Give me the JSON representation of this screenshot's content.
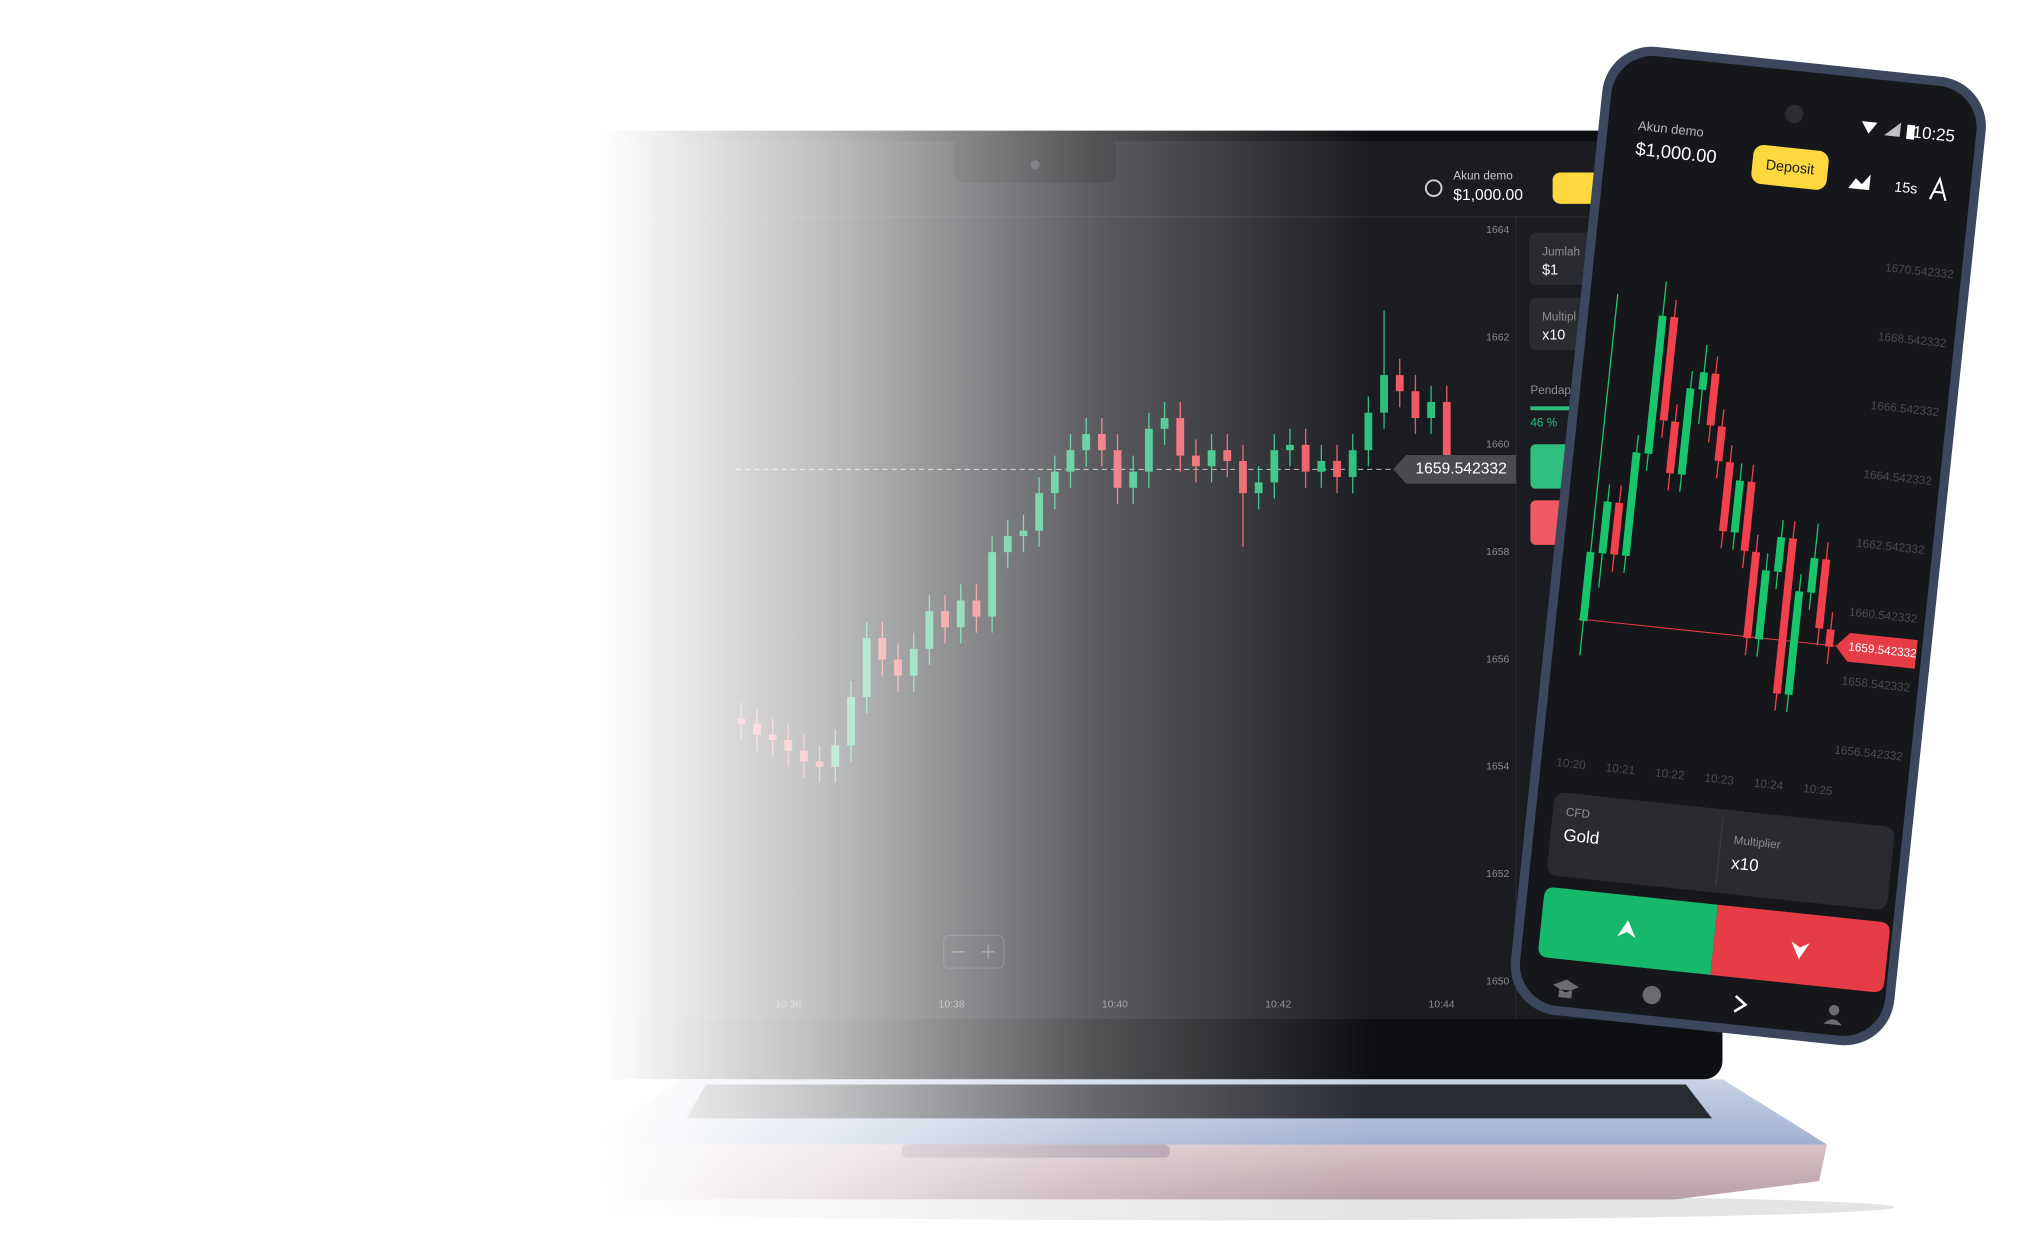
{
  "laptop": {
    "account_label": "Akun demo",
    "balance": "$1,000.00",
    "panel": {
      "amount_label": "Jumlah",
      "amount": "$1",
      "multiplier_label": "Multipl",
      "multiplier": "x10",
      "payout_label": "Pendap",
      "payout": "46 %"
    }
  },
  "phone": {
    "time": "10:25",
    "account_label": "Akun demo",
    "balance": "$1,000.00",
    "deposit": "Deposit",
    "timeframe": "15s",
    "asset_type": "CFD",
    "asset": "Gold",
    "multiplier_label": "Multiplier",
    "multiplier": "x10"
  },
  "chart_data": [
    {
      "type": "candlestick",
      "open": [
        1654.9,
        1654.8,
        1654.6,
        1654.5,
        1654.3,
        1654.1,
        1654.0,
        1654.4,
        1655.3,
        1656.4,
        1656.0,
        1655.7,
        1656.2,
        1656.9,
        1656.6,
        1657.1,
        1656.8,
        1658.0,
        1658.3,
        1658.4,
        1659.1,
        1659.5,
        1659.9,
        1660.2,
        1659.9,
        1659.2,
        1659.5,
        1660.3,
        1660.5,
        1659.8,
        1659.6,
        1659.9,
        1659.7,
        1659.1,
        1659.3,
        1659.9,
        1660.0,
        1659.5,
        1659.7,
        1659.4,
        1659.9,
        1660.6,
        1661.3,
        1661.0,
        1660.5,
        1660.8
      ],
      "high": [
        1655.2,
        1655.1,
        1654.9,
        1654.8,
        1654.6,
        1654.4,
        1654.7,
        1655.6,
        1656.7,
        1656.7,
        1656.3,
        1656.5,
        1657.2,
        1657.2,
        1657.4,
        1657.4,
        1658.3,
        1658.6,
        1658.7,
        1659.4,
        1659.8,
        1660.2,
        1660.5,
        1660.5,
        1660.2,
        1659.8,
        1660.6,
        1660.8,
        1660.8,
        1660.1,
        1660.2,
        1660.2,
        1660.0,
        1659.6,
        1660.2,
        1660.3,
        1660.3,
        1660.0,
        1660.0,
        1660.2,
        1660.9,
        1662.5,
        1661.6,
        1661.3,
        1661.1,
        1661.1
      ],
      "low": [
        1654.5,
        1654.3,
        1654.2,
        1654.0,
        1653.8,
        1653.7,
        1653.7,
        1654.1,
        1655.0,
        1655.7,
        1655.4,
        1655.4,
        1655.9,
        1656.3,
        1656.3,
        1656.5,
        1656.5,
        1657.7,
        1658.0,
        1658.1,
        1658.8,
        1659.2,
        1659.6,
        1659.6,
        1658.9,
        1658.9,
        1659.2,
        1660.0,
        1659.5,
        1659.3,
        1659.3,
        1659.4,
        1658.1,
        1658.8,
        1659.0,
        1659.6,
        1659.2,
        1659.2,
        1659.1,
        1659.1,
        1659.6,
        1660.3,
        1660.7,
        1660.2,
        1660.2,
        1659.5
      ],
      "close": [
        1654.8,
        1654.6,
        1654.5,
        1654.3,
        1654.1,
        1654.0,
        1654.4,
        1655.3,
        1656.4,
        1656.0,
        1655.7,
        1656.2,
        1656.9,
        1656.6,
        1657.1,
        1656.8,
        1658.0,
        1658.3,
        1658.4,
        1659.1,
        1659.5,
        1659.9,
        1660.2,
        1659.9,
        1659.2,
        1659.5,
        1660.3,
        1660.5,
        1659.8,
        1659.6,
        1659.9,
        1659.7,
        1659.1,
        1659.3,
        1659.9,
        1660.0,
        1659.5,
        1659.7,
        1659.4,
        1659.9,
        1660.6,
        1661.3,
        1661.0,
        1660.5,
        1660.8,
        1659.8
      ],
      "up_color": "#2fbf7f",
      "down_color": "#ef5a63",
      "ylim": [
        1649.3,
        1664.15
      ],
      "yticks": [
        1650,
        1652,
        1654,
        1656,
        1658,
        1660,
        1662,
        1664
      ],
      "x_labels": [
        "10:36",
        "10:38",
        "10:40",
        "10:42",
        "10:44"
      ],
      "price": 1659.542332
    },
    {
      "type": "candlestick",
      "open": [
        1659.5,
        1661.5,
        1663.0,
        1661.5,
        1664.5,
        1668.5,
        1665.5,
        1664.0,
        1666.5,
        1667.0,
        1665.5,
        1664.5,
        1662.5,
        1664.0,
        1662.0,
        1659.5,
        1661.5,
        1662.5,
        1658.0,
        1661.0,
        1662.0,
        1660.0
      ],
      "high": [
        1669.0,
        1663.5,
        1663.5,
        1665.0,
        1669.5,
        1669.0,
        1666.0,
        1667.0,
        1667.8,
        1667.5,
        1666.0,
        1665.0,
        1664.5,
        1664.5,
        1662.5,
        1662.0,
        1663.0,
        1663.0,
        1661.5,
        1663.0,
        1662.5,
        1660.5
      ],
      "low": [
        1658.5,
        1660.5,
        1661.0,
        1661.0,
        1664.0,
        1665.0,
        1663.5,
        1663.5,
        1665.5,
        1665.0,
        1664.0,
        1662.0,
        1662.0,
        1661.5,
        1659.0,
        1659.0,
        1661.0,
        1657.5,
        1657.5,
        1660.5,
        1659.5,
        1659.0
      ],
      "close": [
        1661.5,
        1663.0,
        1661.5,
        1664.5,
        1668.5,
        1665.5,
        1664.0,
        1666.5,
        1667.0,
        1665.5,
        1664.5,
        1662.5,
        1664.0,
        1662.0,
        1659.5,
        1661.5,
        1662.5,
        1658.0,
        1661.0,
        1662.0,
        1660.0,
        1659.5
      ],
      "up_color": "#18c46c",
      "down_color": "#f2404c",
      "ylim": [
        1655.83,
        1671.3
      ],
      "yticks": [
        1656.542332,
        1658.542332,
        1660.542332,
        1662.542332,
        1664.542332,
        1666.542332,
        1668.542332,
        1670.542332
      ],
      "x_labels": [
        "10:20",
        "10:21",
        "10:22",
        "10:23",
        "10:24",
        "10:25"
      ],
      "price": 1659.542332
    }
  ]
}
